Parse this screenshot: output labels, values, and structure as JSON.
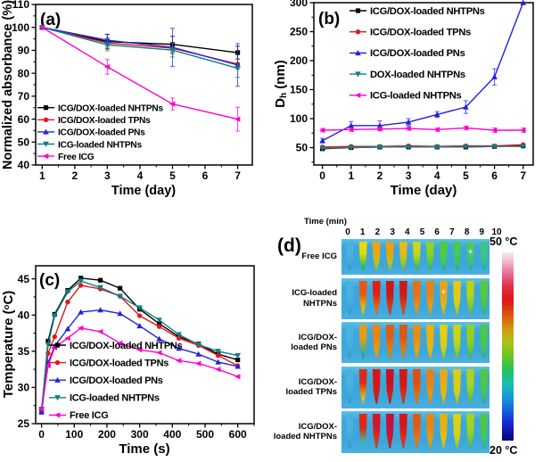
{
  "figure_background": "#ffffff",
  "chart_data": [
    {
      "id": "a",
      "type": "line",
      "panel_label": "(a)",
      "xlabel": "Time (day)",
      "ylabel": "Normalized absorbance (%)",
      "xlim": [
        0.8,
        7.45
      ],
      "ylim": [
        40,
        110
      ],
      "xticks": [
        1,
        2,
        3,
        4,
        5,
        6,
        7
      ],
      "yticks": [
        40,
        50,
        60,
        70,
        80,
        90,
        100,
        110
      ],
      "xminor": 0.5,
      "yminor": 5,
      "legend_pos": "lower-left",
      "x": [
        1,
        3,
        5,
        7
      ],
      "series": [
        {
          "name": "ICG/DOX-loaded NHTPNs",
          "color": "#000000",
          "marker": "square",
          "values": [
            100,
            93.8,
            92.6,
            89.0
          ],
          "errors": [
            0,
            3.2,
            3.5,
            2.8
          ]
        },
        {
          "name": "ICG/DOX-loaded TPNs",
          "color": "#e8151c",
          "marker": "circle",
          "values": [
            100,
            93.2,
            90.9,
            84.0
          ],
          "errors": [
            0,
            2.2,
            2.5,
            2.2
          ]
        },
        {
          "name": "ICG/DOX-loaded PNs",
          "color": "#2424d8",
          "marker": "triangle-up",
          "values": [
            100,
            94.4,
            91.3,
            83.6
          ],
          "errors": [
            0,
            2.6,
            8.3,
            9.3
          ]
        },
        {
          "name": "ICG-loaded NHTPNs",
          "color": "#0f8080",
          "marker": "triangle-down",
          "values": [
            100,
            92.4,
            90.1,
            82.2
          ],
          "errors": [
            0,
            2.6,
            3.0,
            4.0
          ]
        },
        {
          "name": "Free ICG",
          "color": "#ff00cc",
          "marker": "triangle-left",
          "values": [
            100,
            82.8,
            66.6,
            60.0
          ],
          "errors": [
            0,
            3.2,
            2.6,
            5.2
          ]
        }
      ]
    },
    {
      "id": "b",
      "type": "line",
      "panel_label": "(b)",
      "xlabel": "Time (day)",
      "ylabel_rich": [
        [
          "D",
          null
        ],
        [
          "h",
          "sub"
        ],
        [
          " (nm)",
          null
        ]
      ],
      "xlim": [
        -0.3,
        7.35
      ],
      "ylim": [
        20,
        300
      ],
      "xticks": [
        0,
        1,
        2,
        3,
        4,
        5,
        6,
        7
      ],
      "yticks": [
        50,
        100,
        150,
        200,
        250,
        300
      ],
      "xminor": 0.5,
      "yminor": 25,
      "legend_pos": "upper-left",
      "x": [
        0,
        1,
        2,
        3,
        4,
        5,
        6,
        7
      ],
      "series": [
        {
          "name": "ICG/DOX-loaded NHTPNs",
          "color": "#000000",
          "marker": "square",
          "values": [
            48,
            50,
            51,
            51,
            51,
            51,
            52,
            53
          ],
          "errors": [
            0,
            0,
            0,
            0,
            0,
            0,
            0,
            0
          ]
        },
        {
          "name": "ICG/DOX-loaded TPNs",
          "color": "#e8151c",
          "marker": "circle",
          "values": [
            51,
            52,
            52,
            53,
            52,
            53,
            53,
            55
          ],
          "errors": [
            0,
            0,
            0,
            0,
            0,
            0,
            0,
            0
          ]
        },
        {
          "name": "ICG/DOX-loaded PNs",
          "color": "#2020e6",
          "marker": "triangle-up",
          "values": [
            62,
            88,
            88,
            94,
            107,
            120,
            172,
            300
          ],
          "errors": [
            4,
            7,
            8,
            6,
            5,
            11,
            14,
            0
          ]
        },
        {
          "name": "DOX-loaded NHTPNs",
          "color": "#0f8080",
          "marker": "triangle-down",
          "values": [
            49,
            50,
            51,
            51,
            51,
            51,
            52,
            52
          ],
          "errors": [
            0,
            0,
            0,
            0,
            0,
            0,
            0,
            0
          ]
        },
        {
          "name": "ICG-loaded NHTPNs",
          "color": "#ff00cc",
          "marker": "triangle-left",
          "values": [
            80,
            81,
            82,
            83,
            81,
            84,
            80,
            80
          ],
          "errors": [
            3,
            3,
            3,
            3,
            3,
            3,
            4,
            4
          ]
        }
      ]
    },
    {
      "id": "c",
      "type": "line",
      "panel_label": "(c)",
      "xlabel": "Time (s)",
      "ylabel_rich": [
        [
          "Temperature (",
          null
        ],
        [
          "o",
          "sup"
        ],
        [
          "C)",
          null
        ]
      ],
      "xlim": [
        -18,
        650
      ],
      "ylim": [
        25,
        46.8
      ],
      "xticks": [
        0,
        100,
        200,
        300,
        400,
        500,
        600
      ],
      "yticks": [
        25,
        30,
        35,
        40,
        45
      ],
      "xminor": 50,
      "yminor": 2.5,
      "legend_pos": "lower-left",
      "x": [
        0,
        20,
        40,
        80,
        120,
        180,
        240,
        300,
        360,
        420,
        480,
        540,
        600
      ],
      "series": [
        {
          "name": "ICG/DOX-loaded NHTPNs",
          "color": "#000000",
          "marker": "square",
          "values": [
            26.6,
            36.4,
            40.1,
            43.4,
            45.1,
            44.8,
            43.7,
            40.8,
            38.8,
            37.0,
            36.0,
            34.6,
            33.8
          ]
        },
        {
          "name": "ICG/DOX-loaded TPNs",
          "color": "#e8151c",
          "marker": "circle",
          "values": [
            26.6,
            34.7,
            37.0,
            41.8,
            44.1,
            43.6,
            42.6,
            39.9,
            38.4,
            36.8,
            35.8,
            34.4,
            33.0
          ]
        },
        {
          "name": "ICG/DOX-loaded PNs",
          "color": "#2424d8",
          "marker": "triangle-up",
          "values": [
            26.6,
            33.4,
            35.7,
            38.1,
            40.4,
            40.7,
            40.2,
            38.5,
            36.7,
            35.4,
            34.6,
            33.5,
            32.9
          ]
        },
        {
          "name": "ICG-loaded NHTPNs",
          "color": "#0f8080",
          "marker": "triangle-down",
          "values": [
            27.0,
            35.9,
            39.9,
            43.2,
            44.7,
            43.8,
            42.6,
            41.0,
            39.3,
            37.3,
            35.9,
            35.0,
            34.4
          ]
        },
        {
          "name": "Free ICG",
          "color": "#ff00cc",
          "marker": "triangle-left",
          "values": [
            27.0,
            33.0,
            35.5,
            36.8,
            38.2,
            37.7,
            36.1,
            35.2,
            34.8,
            33.7,
            33.3,
            32.5,
            31.5
          ]
        }
      ]
    },
    {
      "id": "d",
      "type": "heatmap",
      "panel_label": "(d)",
      "time_header": "Time (min)",
      "time_columns": [
        "0",
        "1",
        "2",
        "3",
        "4",
        "5",
        "6",
        "7",
        "8",
        "9",
        "10"
      ],
      "colorbar": {
        "max_label": "50 °C",
        "min_label": "20 °C",
        "gradient": [
          [
            "#f4ecf2",
            0
          ],
          [
            "#eeb8cc",
            5
          ],
          [
            "#e87098",
            11
          ],
          [
            "#e03048",
            18
          ],
          [
            "#dd1515",
            25
          ],
          [
            "#de5211",
            33
          ],
          [
            "#d29a12",
            41
          ],
          [
            "#a8c417",
            48
          ],
          [
            "#5ec723",
            56
          ],
          [
            "#1fc262",
            63
          ],
          [
            "#18bfae",
            70
          ],
          [
            "#169ad8",
            77
          ],
          [
            "#1560e0",
            84
          ],
          [
            "#1627cf",
            91
          ],
          [
            "#0d0d92",
            97
          ],
          [
            "#0a0a70",
            100
          ]
        ]
      },
      "bg_top": "#5cc0ea",
      "bg_main": "#3da6da",
      "rows": [
        {
          "label_lines": [
            "Free ICG"
          ],
          "tubes": [
            [
              "#4ab2e0",
              "#3ea6d8"
            ],
            [
              "#ead800",
              "#3cc24c"
            ],
            [
              "#eea410",
              "#aacc20"
            ],
            [
              "#eda00e",
              "#b0cc1e"
            ],
            [
              "#e6bc10",
              "#8cc832"
            ],
            [
              "#ccd614",
              "#52c44a"
            ],
            [
              "#8ed226",
              "#46c456"
            ],
            [
              "#52ca44",
              "#3cc464"
            ],
            [
              "#48c858",
              "#38c272"
            ],
            [
              "#4cc86a",
              "#38c080",
              true
            ],
            [
              "#3cc488",
              "#34be96"
            ]
          ]
        },
        {
          "label_lines": [
            "ICG-loaded",
            "NHTPNs"
          ],
          "tubes": [
            [
              "#4ab2e0",
              "#3ea6d8"
            ],
            [
              "#e85514",
              "#e6ce10"
            ],
            [
              "#df2010",
              "#e87818"
            ],
            [
              "#cd1717",
              "#d94312"
            ],
            [
              "#d11815",
              "#dc4f12"
            ],
            [
              "#e77013",
              "#e89c14"
            ],
            [
              "#e88214",
              "#e8a816"
            ],
            [
              "#e8a414",
              "#e0c216",
              true
            ],
            [
              "#e4ca12",
              "#c8d218"
            ],
            [
              "#b4d417",
              "#7cca2c"
            ],
            [
              "#56c83c",
              "#42c45c"
            ]
          ]
        },
        {
          "label_lines": [
            "ICG/DOX-",
            "loaded PNs"
          ],
          "tubes": [
            [
              "#4ab2e0",
              "#3ea6d8"
            ],
            [
              "#e89a16",
              "#2eb88e"
            ],
            [
              "#e88414",
              "#e0a816"
            ],
            [
              "#e25c12",
              "#e08c16"
            ],
            [
              "#e05512",
              "#e08a16"
            ],
            [
              "#e88c14",
              "#e4ae14"
            ],
            [
              "#e8b014",
              "#dcc414"
            ],
            [
              "#e2d012",
              "#c0d218"
            ],
            [
              "#c6d614",
              "#96ce24"
            ],
            [
              "#96d020",
              "#58c844"
            ],
            [
              "#4cc64c",
              "#3cc266"
            ]
          ]
        },
        {
          "label_lines": [
            "ICG/DOX-",
            "loaded TPNs"
          ],
          "tubes": [
            [
              "#4ab2e0",
              "#3ea6d8"
            ],
            [
              "#e02a14",
              "#dfd218"
            ],
            [
              "#d81714",
              "#cc2020"
            ],
            [
              "#c91120",
              "#d22214"
            ],
            [
              "#d61613",
              "#dc3812"
            ],
            [
              "#e14e12",
              "#e37a14"
            ],
            [
              "#e88014",
              "#e6a014"
            ],
            [
              "#e8a814",
              "#e2c014"
            ],
            [
              "#e0cc12",
              "#c2d418"
            ],
            [
              "#aad41c",
              "#6cca34"
            ],
            [
              "#50c644",
              "#3ec260"
            ]
          ]
        },
        {
          "label_lines": [
            "ICG/DOX-",
            "loaded NHTPNs"
          ],
          "tubes": [
            [
              "#4ab2e0",
              "#3ea6d8"
            ],
            [
              "#df2814",
              "#3cc4b0"
            ],
            [
              "#d2182c",
              "#dc4018"
            ],
            [
              "#c01240",
              "#d01f1c"
            ],
            [
              "#d7151c",
              "#dd4214"
            ],
            [
              "#e25a12",
              "#e68414"
            ],
            [
              "#e88614",
              "#e6a814"
            ],
            [
              "#e8b014",
              "#e0c814"
            ],
            [
              "#e0d012",
              "#bcd41a"
            ],
            [
              "#a4d41e",
              "#62c83c"
            ],
            [
              "#4cc64c",
              "#3ac86e"
            ]
          ]
        }
      ]
    }
  ]
}
